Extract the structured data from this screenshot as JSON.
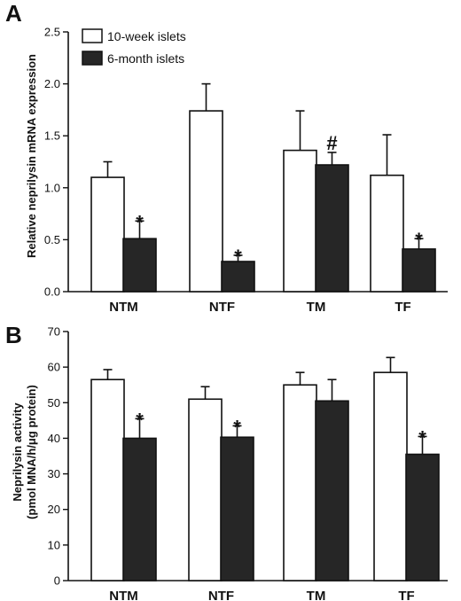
{
  "chart_data": [
    {
      "panel": "A",
      "type": "bar",
      "ylabel": "Relative neprilysin mRNA expression",
      "categories": [
        "NTM",
        "NTF",
        "TM",
        "TF"
      ],
      "ylim": [
        0,
        2.5
      ],
      "yticks": [
        "0.0",
        "0.5",
        "1.0",
        "1.5",
        "2.0",
        "2.5"
      ],
      "legend": {
        "placement": "top-left",
        "entries": [
          "10-week islets",
          "6-month islets"
        ]
      },
      "series": [
        {
          "name": "10-week islets",
          "color": "#ffffff",
          "values": [
            1.1,
            1.74,
            1.36,
            1.12
          ],
          "errors": [
            0.15,
            0.26,
            0.38,
            0.39
          ],
          "annotations": [
            "",
            "",
            "",
            ""
          ]
        },
        {
          "name": "6-month islets",
          "color": "#262626",
          "values": [
            0.51,
            0.29,
            1.22,
            0.41
          ],
          "errors": [
            0.17,
            0.06,
            0.12,
            0.1
          ],
          "annotations": [
            "*",
            "*",
            "#",
            "*"
          ]
        }
      ]
    },
    {
      "panel": "B",
      "type": "bar",
      "ylabel": "Neprilysin activity (pmol MNA/h/μg protein)",
      "ylabel_lines": [
        "Neprilysin activity",
        "(pmol MNA/h/μg protein)"
      ],
      "categories": [
        "NTM",
        "NTF",
        "TM",
        "TF"
      ],
      "ylim": [
        0,
        70
      ],
      "yticks": [
        "0",
        "10",
        "20",
        "30",
        "40",
        "50",
        "60",
        "70"
      ],
      "series": [
        {
          "name": "10-week islets",
          "color": "#ffffff",
          "values": [
            56.5,
            51.0,
            55.0,
            58.5
          ],
          "errors": [
            2.8,
            3.5,
            3.5,
            4.2
          ],
          "annotations": [
            "",
            "",
            "",
            ""
          ]
        },
        {
          "name": "6-month islets",
          "color": "#262626",
          "values": [
            40.0,
            40.3,
            50.5,
            35.5
          ],
          "errors": [
            5.5,
            3.2,
            6.0,
            5.0
          ],
          "annotations": [
            "*",
            "*",
            "",
            "*"
          ]
        }
      ]
    }
  ]
}
